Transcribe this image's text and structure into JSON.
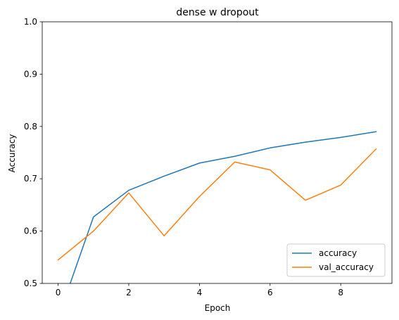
{
  "chart_data": {
    "type": "line",
    "title": "dense w dropout",
    "xlabel": "Epoch",
    "ylabel": "Accuracy",
    "xlim": [
      -0.45,
      9.45
    ],
    "ylim": [
      0.5,
      1.0
    ],
    "x_ticks": [
      "0",
      "2",
      "4",
      "6",
      "8"
    ],
    "y_ticks": [
      "0.5",
      "0.6",
      "0.7",
      "0.8",
      "0.9",
      "1.0"
    ],
    "x": [
      0,
      1,
      2,
      3,
      4,
      5,
      6,
      7,
      8,
      9
    ],
    "series": [
      {
        "name": "accuracy",
        "color": "#1f77b4",
        "values": [
          0.434,
          0.627,
          0.678,
          0.705,
          0.73,
          0.743,
          0.759,
          0.77,
          0.779,
          0.79
        ]
      },
      {
        "name": "val_accuracy",
        "color": "#ff7f0e",
        "values": [
          0.545,
          0.6,
          0.673,
          0.591,
          0.666,
          0.732,
          0.717,
          0.659,
          0.688,
          0.757
        ]
      }
    ],
    "grid": false,
    "legend_position": "lower-right"
  }
}
